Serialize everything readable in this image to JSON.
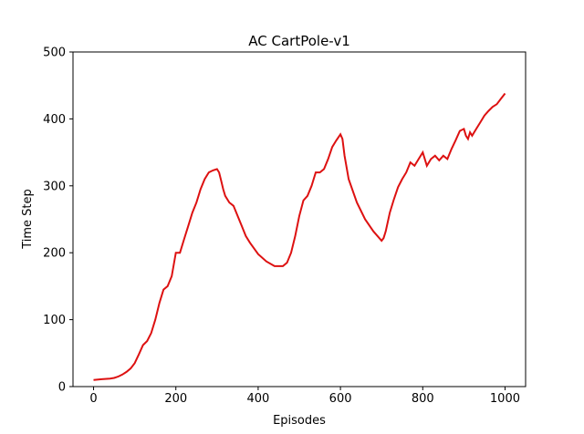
{
  "chart_data": {
    "type": "line",
    "title": "AC CartPole-v1",
    "xlabel": "Episodes",
    "ylabel": "Time Step",
    "xlim": [
      -50,
      1050
    ],
    "ylim": [
      0,
      500
    ],
    "xticks": [
      0,
      200,
      400,
      600,
      800,
      1000
    ],
    "yticks": [
      0,
      100,
      200,
      300,
      400,
      500
    ],
    "grid": false,
    "line_color": "#dd1111",
    "series": [
      {
        "x": [
          0,
          20,
          40,
          50,
          60,
          70,
          80,
          90,
          100,
          110,
          120,
          130,
          140,
          150,
          160,
          170,
          180,
          190,
          200,
          210,
          220,
          230,
          240,
          250,
          260,
          270,
          280,
          290,
          300,
          305,
          310,
          315,
          320,
          330,
          340,
          350,
          360,
          370,
          380,
          400,
          420,
          440,
          460,
          470,
          480,
          490,
          500,
          510,
          520,
          530,
          540,
          550,
          560,
          570,
          580,
          590,
          600,
          605,
          610,
          620,
          640,
          660,
          680,
          700,
          705,
          710,
          720,
          730,
          740,
          750,
          760,
          770,
          780,
          790,
          800,
          810,
          820,
          830,
          840,
          850,
          860,
          870,
          880,
          890,
          900,
          905,
          910,
          915,
          920,
          930,
          940,
          950,
          960,
          970,
          980,
          990,
          1000
        ],
        "y": [
          10,
          11,
          12,
          13,
          15,
          18,
          22,
          27,
          35,
          48,
          62,
          68,
          80,
          100,
          125,
          145,
          150,
          165,
          200,
          200,
          220,
          240,
          260,
          275,
          295,
          310,
          320,
          323,
          325,
          320,
          308,
          295,
          285,
          275,
          270,
          255,
          240,
          225,
          215,
          198,
          187,
          180,
          180,
          185,
          200,
          225,
          255,
          278,
          285,
          300,
          320,
          320,
          325,
          340,
          358,
          368,
          377,
          370,
          345,
          310,
          275,
          250,
          232,
          218,
          222,
          232,
          260,
          280,
          298,
          310,
          320,
          335,
          330,
          340,
          350,
          330,
          340,
          345,
          338,
          345,
          340,
          355,
          368,
          382,
          385,
          375,
          370,
          380,
          375,
          385,
          395,
          405,
          412,
          418,
          422,
          430,
          438
        ]
      }
    ]
  }
}
